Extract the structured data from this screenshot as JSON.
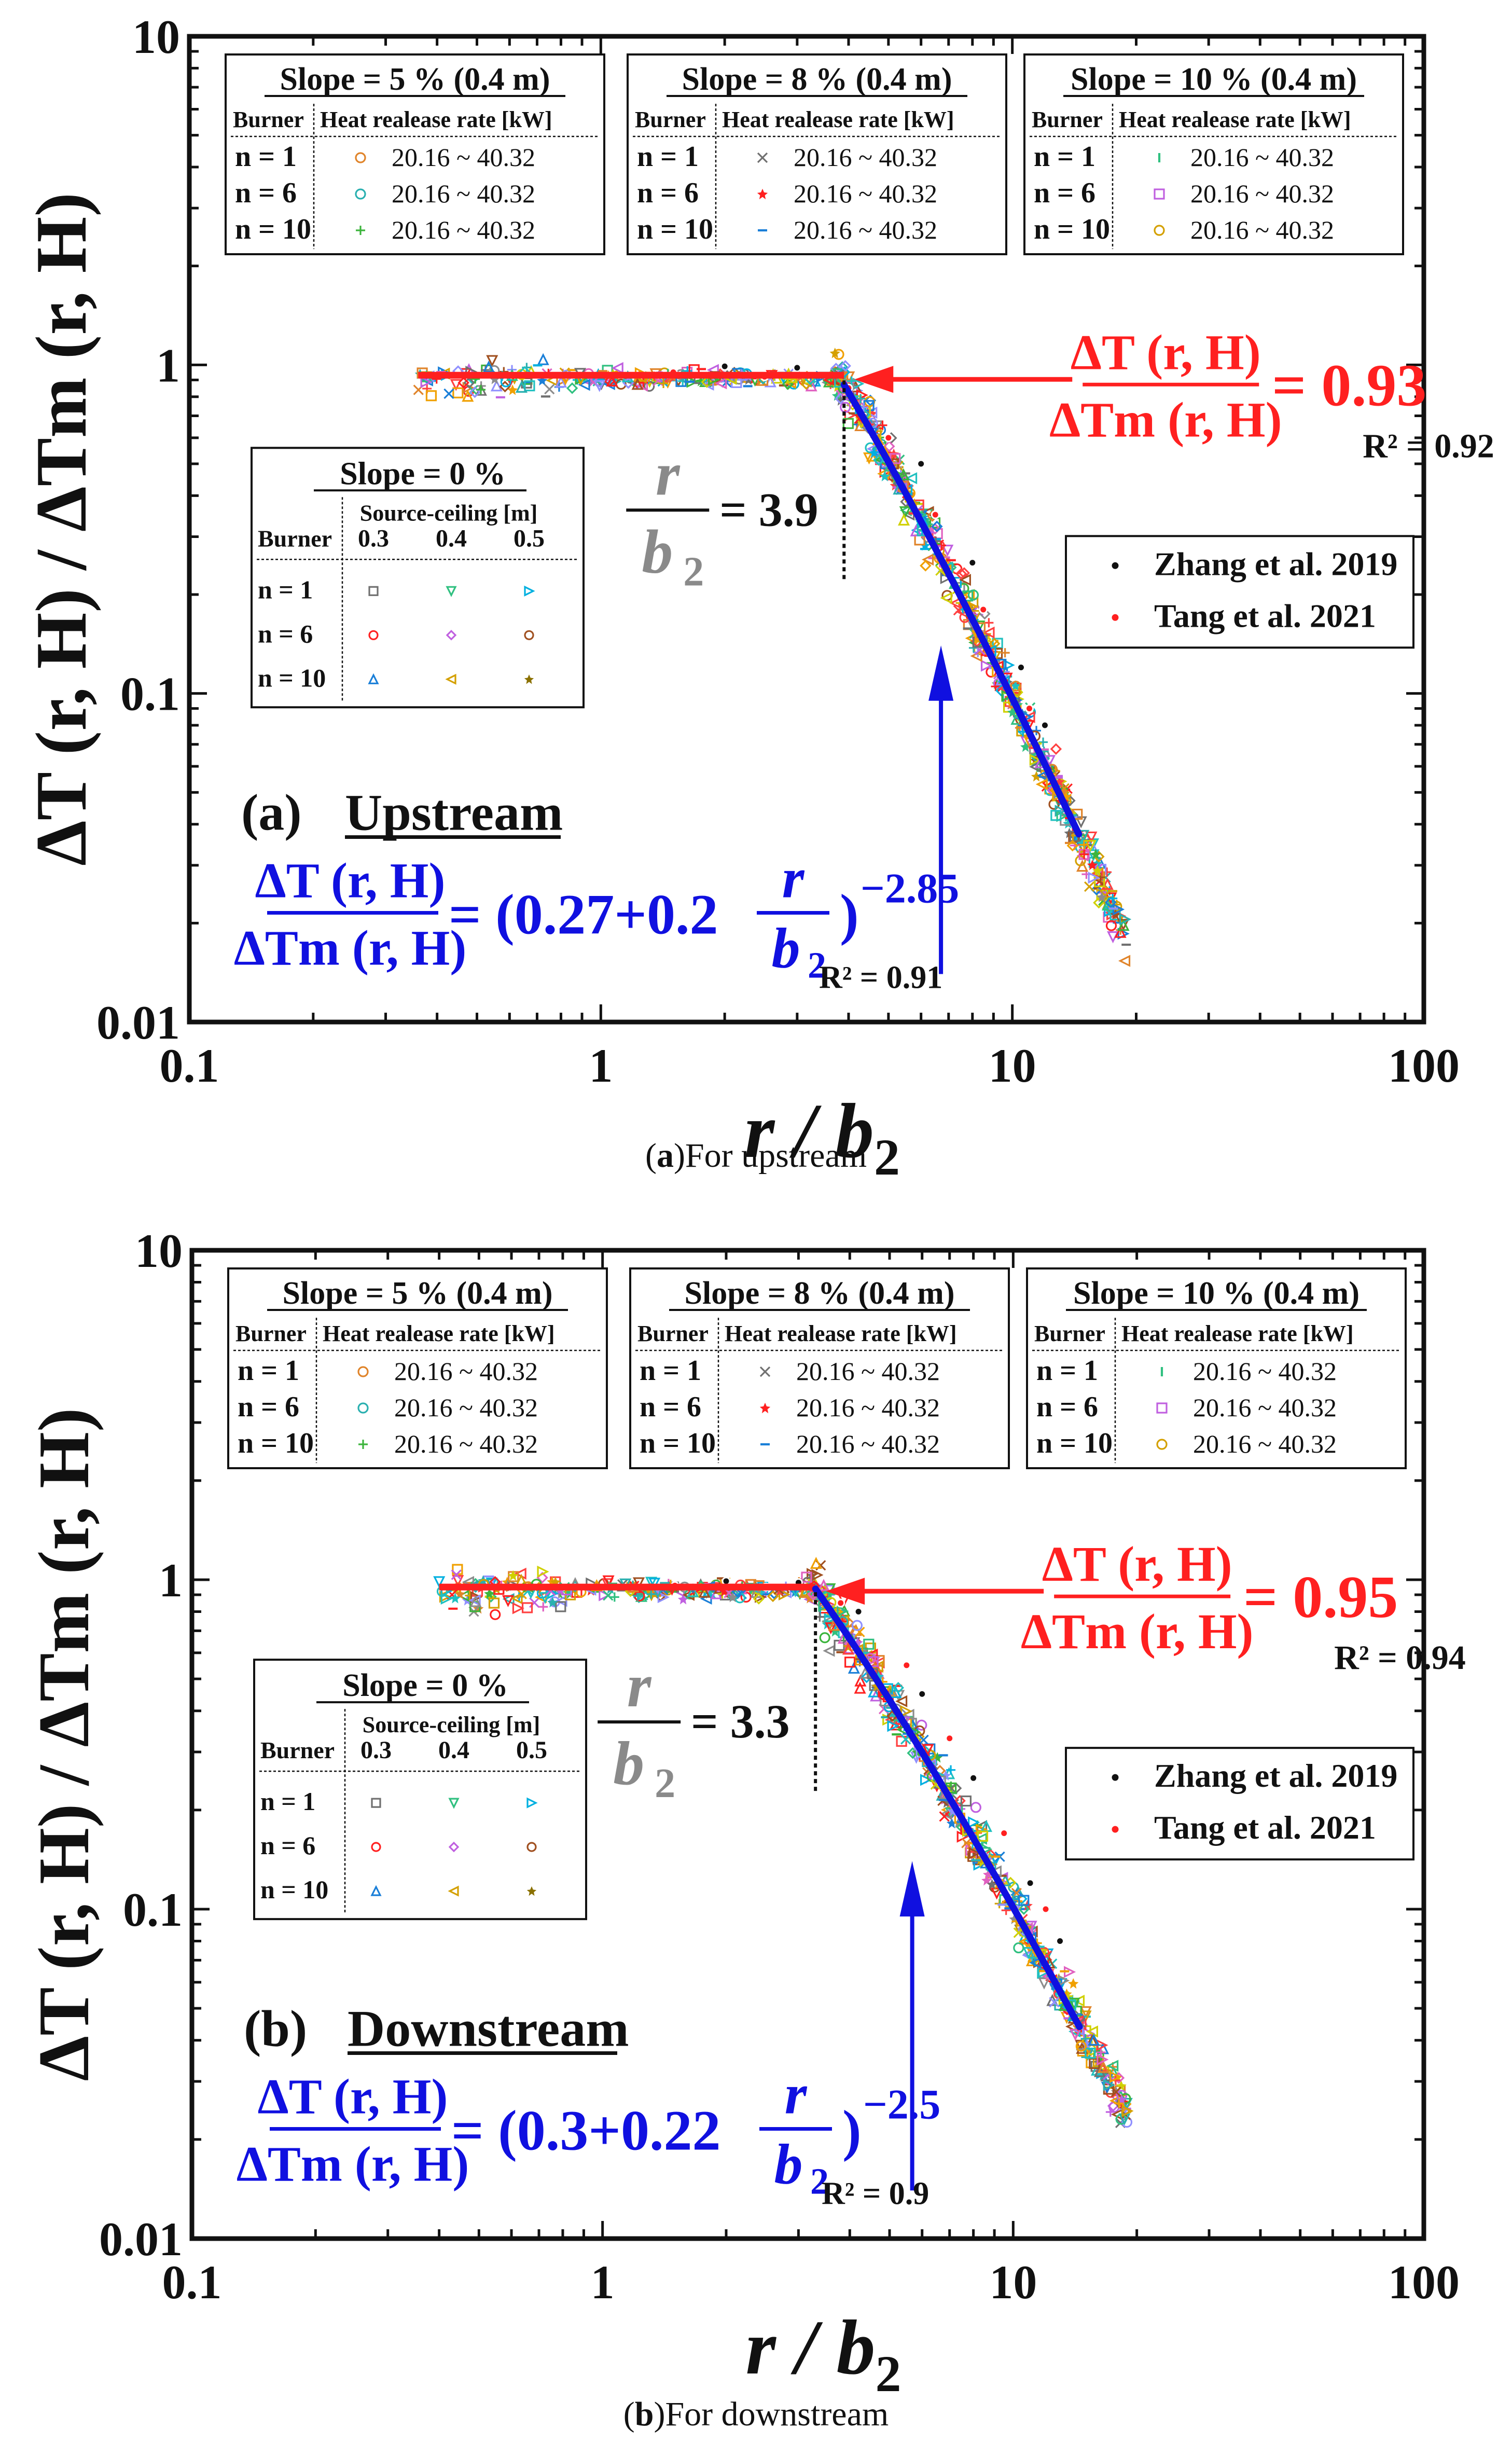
{
  "chart_data": [
    {
      "type": "scatter",
      "panel": "a",
      "title_prefix": "(a)",
      "title_word": "Upstream",
      "caption_open": "(",
      "caption_letter": "a",
      "caption_rest": ")For upstream",
      "xlabel": "r / b",
      "xlabel_sub": "2",
      "ylabel": "ΔT (r, H) / ΔT_m (r, H)",
      "xscale": "log",
      "yscale": "log",
      "xlim": [
        0.1,
        100
      ],
      "ylim": [
        0.01,
        10
      ],
      "xticks": [
        "0.1",
        "1",
        "10",
        "100"
      ],
      "yticks": [
        "0.01",
        "0.1",
        "1",
        "10"
      ],
      "xticks_values": [
        0.1,
        1,
        10,
        100
      ],
      "yticks_values": [
        0.01,
        0.1,
        1,
        10
      ],
      "plateau": {
        "value": 0.93,
        "x_from": 0.36,
        "x_to": 3.9,
        "label": "= 0.93",
        "r2": "R² = 0.92"
      },
      "breakpoint": {
        "x": 3.9,
        "label": "= 3.9"
      },
      "fit": {
        "a": 0.27,
        "b": 0.2,
        "exponent": -2.85,
        "x_from": 3.9,
        "x_to": 14.5,
        "text_mid": "= (0.27+0.2",
        "text_exp": "−2.85",
        "r2": "R² = 0.91"
      },
      "legends": {
        "slope5": {
          "title": "Slope = 5 % (0.4 m)",
          "header_left": "Burner",
          "header_right": "Heat realease rate [kW]",
          "rows": [
            {
              "n": "n = 1",
              "range": "20.16 ~ 40.32",
              "color": "#e0842a"
            },
            {
              "n": "n = 6",
              "range": "20.16 ~ 40.32",
              "color": "#2ab0b0"
            },
            {
              "n": "n = 10",
              "range": "20.16 ~ 40.32",
              "color": "#3cb43c"
            }
          ]
        },
        "slope8": {
          "title": "Slope = 8 % (0.4 m)",
          "header_left": "Burner",
          "header_right": "Heat realease rate [kW]",
          "rows": [
            {
              "n": "n = 1",
              "range": "20.16 ~ 40.32",
              "color": "#707070"
            },
            {
              "n": "n = 6",
              "range": "20.16 ~ 40.32",
              "color": "#ff2020"
            },
            {
              "n": "n = 10",
              "range": "20.16 ~ 40.32",
              "color": "#1a7fd8"
            }
          ]
        },
        "slope10": {
          "title": "Slope = 10 % (0.4 m)",
          "header_left": "Burner",
          "header_right": "Heat realease rate [kW]",
          "rows": [
            {
              "n": "n = 1",
              "range": "20.16 ~ 40.32",
              "color": "#30c080"
            },
            {
              "n": "n = 6",
              "range": "20.16 ~ 40.32",
              "color": "#c060e0"
            },
            {
              "n": "n = 10",
              "range": "20.16 ~ 40.32",
              "color": "#d4a000"
            }
          ]
        },
        "slope0": {
          "title": "Slope = 0 %",
          "sub": "Source-ceiling [m]",
          "burner": "Burner",
          "cols": [
            "0.3",
            "0.4",
            "0.5"
          ],
          "rows": [
            "n = 1",
            "n = 6",
            "n = 10"
          ]
        },
        "refs": [
          {
            "label": "Zhang et al. 2019",
            "color": "#111111"
          },
          {
            "label": "Tang et al. 2021",
            "color": "#ff2020"
          }
        ]
      },
      "reference_points_zhang": [
        [
          2.0,
          0.99
        ],
        [
          3.0,
          0.98
        ],
        [
          4.5,
          0.9
        ],
        [
          6.0,
          0.5
        ],
        [
          8.0,
          0.25
        ],
        [
          10.5,
          0.12
        ],
        [
          12.0,
          0.08
        ]
      ],
      "reference_points_tang": [
        [
          1.5,
          0.95
        ],
        [
          2.5,
          0.92
        ],
        [
          4.0,
          0.85
        ],
        [
          5.0,
          0.6
        ],
        [
          6.5,
          0.35
        ],
        [
          8.5,
          0.18
        ],
        [
          11.0,
          0.09
        ]
      ]
    },
    {
      "type": "scatter",
      "panel": "b",
      "title_prefix": "(b)",
      "title_word": "Downstream",
      "caption_open": "(",
      "caption_letter": "b",
      "caption_rest": ")For downstream",
      "xlabel": "r / b",
      "xlabel_sub": "2",
      "ylabel": "ΔT (r, H) / ΔT_m (r, H)",
      "xscale": "log",
      "yscale": "log",
      "xlim": [
        0.1,
        100
      ],
      "ylim": [
        0.01,
        10
      ],
      "xticks": [
        "0.1",
        "1",
        "10",
        "100"
      ],
      "yticks": [
        "0.01",
        "0.1",
        "1",
        "10"
      ],
      "xticks_values": [
        0.1,
        1,
        10,
        100
      ],
      "yticks_values": [
        0.01,
        0.1,
        1,
        10
      ],
      "plateau": {
        "value": 0.95,
        "x_from": 0.4,
        "x_to": 3.3,
        "label": "= 0.95",
        "r2": "R² = 0.94"
      },
      "breakpoint": {
        "x": 3.3,
        "label": "= 3.3"
      },
      "fit": {
        "a": 0.3,
        "b": 0.22,
        "exponent": -2.5,
        "x_from": 3.3,
        "x_to": 14.5,
        "text_mid": "= (0.3+0.22",
        "text_exp": "−2.5",
        "r2": "R² = 0.9"
      },
      "legends": {
        "slope5": {
          "title": "Slope = 5 % (0.4 m)",
          "header_left": "Burner",
          "header_right": "Heat realease rate [kW]",
          "rows": [
            {
              "n": "n = 1",
              "range": "20.16 ~ 40.32",
              "color": "#e0842a"
            },
            {
              "n": "n = 6",
              "range": "20.16 ~ 40.32",
              "color": "#2ab0b0"
            },
            {
              "n": "n = 10",
              "range": "20.16 ~ 40.32",
              "color": "#3cb43c"
            }
          ]
        },
        "slope8": {
          "title": "Slope = 8 % (0.4 m)",
          "header_left": "Burner",
          "header_right": "Heat realease rate [kW]",
          "rows": [
            {
              "n": "n = 1",
              "range": "20.16 ~ 40.32",
              "color": "#707070"
            },
            {
              "n": "n = 6",
              "range": "20.16 ~ 40.32",
              "color": "#ff2020"
            },
            {
              "n": "n = 10",
              "range": "20.16 ~ 40.32",
              "color": "#1a7fd8"
            }
          ]
        },
        "slope10": {
          "title": "Slope = 10 % (0.4 m)",
          "header_left": "Burner",
          "header_right": "Heat realease rate [kW]",
          "rows": [
            {
              "n": "n = 1",
              "range": "20.16 ~ 40.32",
              "color": "#30c080"
            },
            {
              "n": "n = 6",
              "range": "20.16 ~ 40.32",
              "color": "#c060e0"
            },
            {
              "n": "n = 10",
              "range": "20.16 ~ 40.32",
              "color": "#d4a000"
            }
          ]
        },
        "slope0": {
          "title": "Slope = 0 %",
          "sub": "Source-ceiling [m]",
          "burner": "Burner",
          "cols": [
            "0.3",
            "0.4",
            "0.5"
          ],
          "rows": [
            "n = 1",
            "n = 6",
            "n = 10"
          ]
        },
        "refs": [
          {
            "label": "Zhang et al. 2019",
            "color": "#111111"
          },
          {
            "label": "Tang et al. 2021",
            "color": "#ff2020"
          }
        ]
      },
      "reference_points_zhang": [
        [
          2.0,
          0.99
        ],
        [
          3.0,
          0.98
        ],
        [
          4.2,
          0.8
        ],
        [
          6.0,
          0.45
        ],
        [
          8.0,
          0.25
        ],
        [
          11.0,
          0.12
        ],
        [
          13.0,
          0.08
        ]
      ],
      "reference_points_tang": [
        [
          1.5,
          0.96
        ],
        [
          2.5,
          0.95
        ],
        [
          3.8,
          0.85
        ],
        [
          5.5,
          0.55
        ],
        [
          7.0,
          0.33
        ],
        [
          9.5,
          0.17
        ],
        [
          12.0,
          0.1
        ]
      ]
    }
  ]
}
